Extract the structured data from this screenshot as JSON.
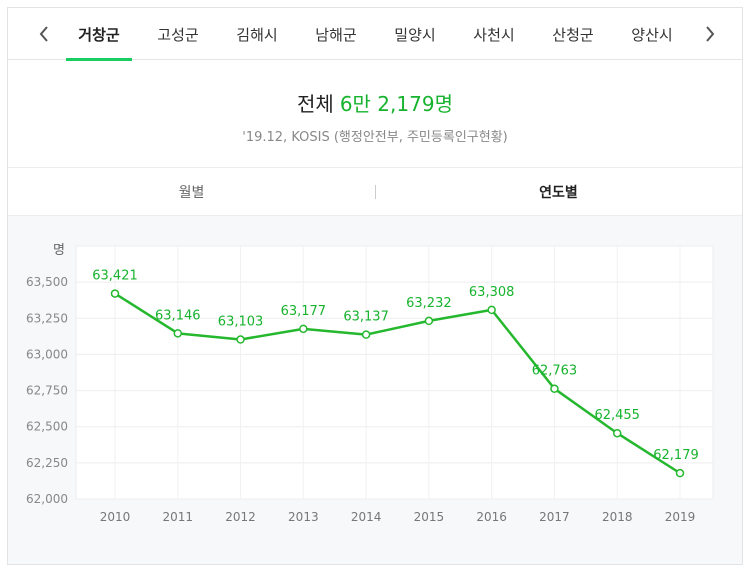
{
  "tabs": [
    {
      "label": "거창군",
      "active": true
    },
    {
      "label": "고성군",
      "active": false
    },
    {
      "label": "김해시",
      "active": false
    },
    {
      "label": "남해군",
      "active": false
    },
    {
      "label": "밀양시",
      "active": false
    },
    {
      "label": "사천시",
      "active": false
    },
    {
      "label": "산청군",
      "active": false
    },
    {
      "label": "양산시",
      "active": false
    }
  ],
  "nav": {
    "prev_icon": "chevron-left-icon",
    "next_icon": "chevron-right-icon"
  },
  "summary": {
    "total_label": "전체",
    "total_value": "6만 2,179명",
    "source": "'19.12, KOSIS (행정안전부, 주민등록인구현황)"
  },
  "period": {
    "monthly": "월별",
    "yearly": "연도별",
    "selected": "연도별"
  },
  "colors": {
    "accent": "#19ce60",
    "line": "#25b82e",
    "value_text": "#17b32e"
  },
  "chart_data": {
    "type": "line",
    "ylabel": "명",
    "xlabel": "",
    "title": "",
    "x": [
      "2010",
      "2011",
      "2012",
      "2013",
      "2014",
      "2015",
      "2016",
      "2017",
      "2018",
      "2019"
    ],
    "series": [
      {
        "values": [
          63421,
          63146,
          63103,
          63177,
          63137,
          63232,
          63308,
          62763,
          62455,
          62179
        ]
      }
    ],
    "data_labels": [
      "63,421",
      "63,146",
      "63,103",
      "63,177",
      "63,137",
      "63,232",
      "63,308",
      "62,763",
      "62,455",
      "62,179"
    ],
    "yticks": [
      62000,
      62250,
      62500,
      62750,
      63000,
      63250,
      63500
    ],
    "ytick_labels": [
      "62,000",
      "62,250",
      "62,500",
      "62,750",
      "63,000",
      "63,250",
      "63,500"
    ],
    "ylim": [
      62000,
      63750
    ],
    "grid": true,
    "legend": "none"
  }
}
